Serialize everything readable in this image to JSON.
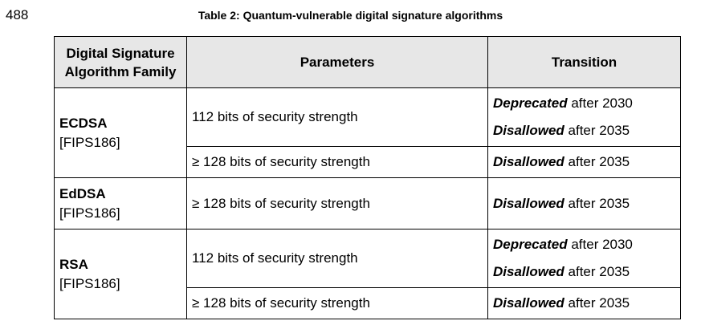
{
  "line_number": "488",
  "caption": "Table 2: Quantum-vulnerable digital signature algorithms",
  "headers": {
    "family": "Digital Signature Algorithm Family",
    "parameters": "Parameters",
    "transition": "Transition"
  },
  "rows": [
    {
      "family": "ECDSA",
      "ref": "[FIPS186]",
      "params": [
        {
          "text": "112 bits of security strength",
          "transitions": [
            {
              "status": "Deprecated",
              "rest": " after 2030"
            },
            {
              "status": "Disallowed",
              "rest": " after 2035"
            }
          ]
        },
        {
          "text": "≥ 128 bits of security strength",
          "transitions": [
            {
              "status": "Disallowed",
              "rest": " after 2035"
            }
          ]
        }
      ]
    },
    {
      "family": "EdDSA",
      "ref": "[FIPS186]",
      "params": [
        {
          "text": "≥ 128 bits of security strength",
          "transitions": [
            {
              "status": "Disallowed",
              "rest": " after 2035"
            }
          ]
        }
      ]
    },
    {
      "family": "RSA",
      "ref": "[FIPS186]",
      "params": [
        {
          "text": "112 bits of security strength",
          "transitions": [
            {
              "status": "Deprecated",
              "rest": " after 2030"
            },
            {
              "status": "Disallowed",
              "rest": " after 2035"
            }
          ]
        },
        {
          "text": "≥ 128 bits of security strength",
          "transitions": [
            {
              "status": "Disallowed",
              "rest": " after 2035"
            }
          ]
        }
      ]
    }
  ]
}
